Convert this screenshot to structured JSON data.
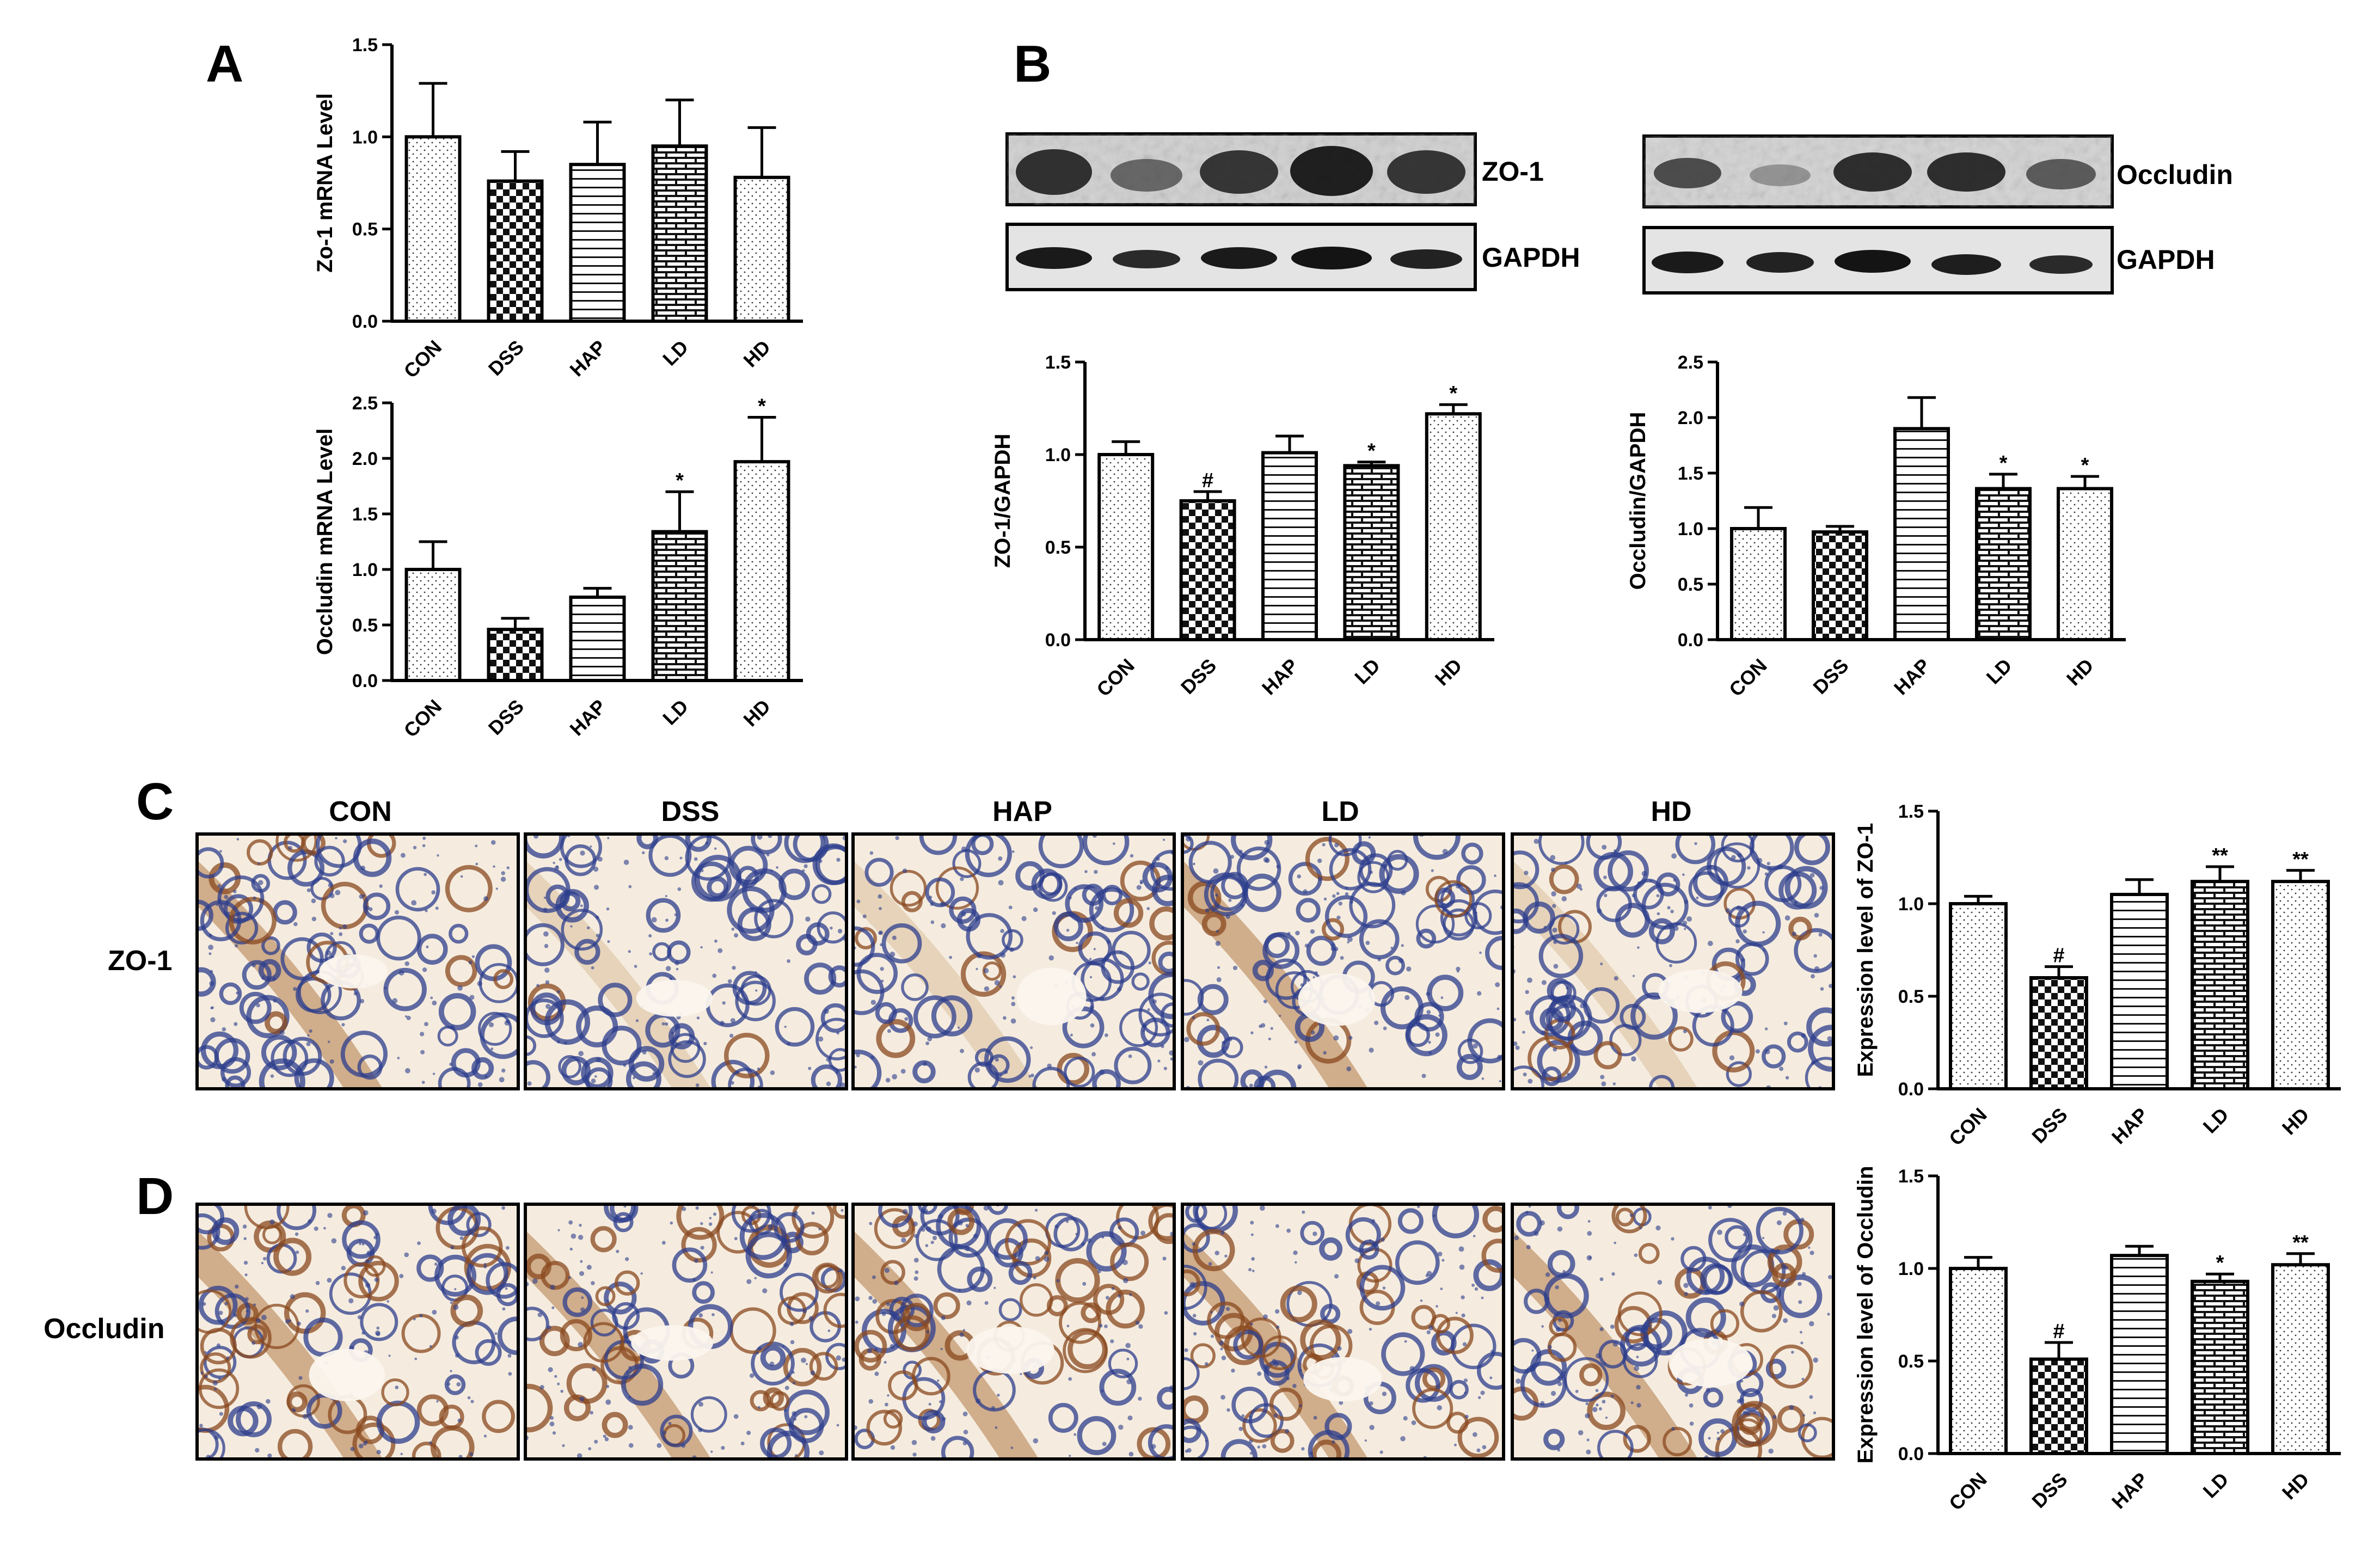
{
  "panels": {
    "A": "A",
    "B": "B",
    "C": "C",
    "D": "D"
  },
  "colors": {
    "axis": "#000000",
    "bar_fill": "#ffffff",
    "ihc_background": "#f3e8d8",
    "ihc_stain_brown": "#8a4a1f",
    "ihc_counterstain_blue": "#2c3d8c",
    "blot_band": "#202020",
    "blot_background": "#d4d4d4"
  },
  "blots": [
    {
      "target": "ZO-1",
      "loading": "GAPDH",
      "lanes": 5
    },
    {
      "target": "Occludin",
      "loading": "GAPDH",
      "lanes": 5
    }
  ],
  "ihc": {
    "groups": [
      "CON",
      "DSS",
      "HAP",
      "LD",
      "HD"
    ],
    "rows": [
      "ZO-1",
      "Occludin"
    ]
  },
  "chart_data": [
    {
      "id": "A-top",
      "panel": "A",
      "type": "bar",
      "categories": [
        "CON",
        "DSS",
        "HAP",
        "LD",
        "HD"
      ],
      "values": [
        1.0,
        0.76,
        0.85,
        0.95,
        0.78
      ],
      "errors": [
        0.29,
        0.16,
        0.23,
        0.25,
        0.27
      ],
      "annotations": [
        "",
        "",
        "",
        "",
        ""
      ],
      "patterns": [
        "dots",
        "checker",
        "hlines",
        "brick",
        "dots"
      ],
      "ylabel": "Zo-1 mRNA Level",
      "ylim": [
        0,
        1.5
      ],
      "yticks": [
        "0.0",
        "0.5",
        "1.0",
        "1.5"
      ],
      "ytick_values": [
        0,
        0.5,
        1.0,
        1.5
      ]
    },
    {
      "id": "A-bottom",
      "panel": "A",
      "type": "bar",
      "categories": [
        "CON",
        "DSS",
        "HAP",
        "LD",
        "HD"
      ],
      "values": [
        1.0,
        0.46,
        0.75,
        1.34,
        1.97
      ],
      "errors": [
        0.25,
        0.1,
        0.08,
        0.36,
        0.4
      ],
      "annotations": [
        "",
        "",
        "",
        "*",
        "*"
      ],
      "patterns": [
        "dots",
        "checker",
        "hlines",
        "brick",
        "dots"
      ],
      "ylabel": "Occludin mRNA Level",
      "ylim": [
        0,
        2.5
      ],
      "yticks": [
        "0.0",
        "0.5",
        "1.0",
        "1.5",
        "2.0",
        "2.5"
      ],
      "ytick_values": [
        0,
        0.5,
        1.0,
        1.5,
        2.0,
        2.5
      ]
    },
    {
      "id": "B-zo1",
      "panel": "B",
      "type": "bar",
      "categories": [
        "CON",
        "DSS",
        "HAP",
        "LD",
        "HD"
      ],
      "values": [
        1.0,
        0.75,
        1.01,
        0.94,
        1.22
      ],
      "errors": [
        0.07,
        0.05,
        0.09,
        0.02,
        0.05
      ],
      "annotations": [
        "",
        "#",
        "",
        "*",
        "*"
      ],
      "patterns": [
        "dots",
        "checker",
        "hlines",
        "brick",
        "dots"
      ],
      "ylabel": "ZO-1/GAPDH",
      "ylim": [
        0,
        1.5
      ],
      "yticks": [
        "0.0",
        "0.5",
        "1.0",
        "1.5"
      ],
      "ytick_values": [
        0,
        0.5,
        1.0,
        1.5
      ]
    },
    {
      "id": "B-occ",
      "panel": "B",
      "type": "bar",
      "categories": [
        "CON",
        "DSS",
        "HAP",
        "LD",
        "HD"
      ],
      "values": [
        1.0,
        0.97,
        1.9,
        1.36,
        1.36
      ],
      "errors": [
        0.19,
        0.05,
        0.28,
        0.13,
        0.11
      ],
      "annotations": [
        "",
        "",
        "",
        "*",
        "*"
      ],
      "patterns": [
        "dots",
        "checker",
        "hlines",
        "brick",
        "dots"
      ],
      "ylabel": "Occludin/GAPDH",
      "ylim": [
        0,
        2.5
      ],
      "yticks": [
        "0.0",
        "0.5",
        "1.0",
        "1.5",
        "2.0",
        "2.5"
      ],
      "ytick_values": [
        0,
        0.5,
        1.0,
        1.5,
        2.0,
        2.5
      ]
    },
    {
      "id": "C-chart",
      "panel": "C",
      "type": "bar",
      "categories": [
        "CON",
        "DSS",
        "HAP",
        "LD",
        "HD"
      ],
      "values": [
        1.0,
        0.6,
        1.05,
        1.12,
        1.12
      ],
      "errors": [
        0.04,
        0.06,
        0.08,
        0.08,
        0.06
      ],
      "annotations": [
        "",
        "#",
        "",
        "**",
        "**"
      ],
      "patterns": [
        "dots",
        "checker",
        "hlines",
        "brick",
        "dots"
      ],
      "ylabel": "Expression level of ZO-1",
      "ylim": [
        0,
        1.5
      ],
      "yticks": [
        "0.0",
        "0.5",
        "1.0",
        "1.5"
      ],
      "ytick_values": [
        0,
        0.5,
        1.0,
        1.5
      ]
    },
    {
      "id": "D-chart",
      "panel": "D",
      "type": "bar",
      "categories": [
        "CON",
        "DSS",
        "HAP",
        "LD",
        "HD"
      ],
      "values": [
        1.0,
        0.51,
        1.07,
        0.93,
        1.02
      ],
      "errors": [
        0.06,
        0.09,
        0.05,
        0.04,
        0.06
      ],
      "annotations": [
        "",
        "#",
        "",
        "*",
        "**"
      ],
      "patterns": [
        "dots",
        "checker",
        "hlines",
        "brick",
        "dots"
      ],
      "ylabel": "Expression level of Occludin",
      "ylim": [
        0,
        1.5
      ],
      "yticks": [
        "0.0",
        "0.5",
        "1.0",
        "1.5"
      ],
      "ytick_values": [
        0,
        0.5,
        1.0,
        1.5
      ]
    }
  ]
}
